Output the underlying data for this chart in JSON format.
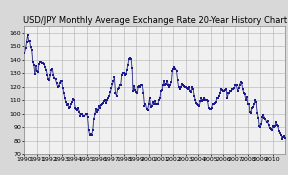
{
  "title": "USD/JPY Monthly Average Exchange Rate 20-Year History Chart",
  "xlim": [
    1990,
    2011
  ],
  "ylim": [
    70,
    165
  ],
  "yticks": [
    70,
    80,
    90,
    100,
    110,
    120,
    130,
    140,
    150,
    160
  ],
  "xtick_labels": [
    "1990",
    "1991",
    "1992",
    "1993",
    "1994",
    "1995",
    "1996",
    "1997",
    "1998",
    "1999",
    "2000",
    "2001",
    "2002",
    "2003",
    "2004",
    "2005",
    "2006",
    "2007",
    "2008",
    "2009",
    "2010"
  ],
  "line_color": "#1a1a8c",
  "marker_color": "#1a1a8c",
  "bg_color": "#d8d8d8",
  "plot_bg": "#f0f0f0",
  "grid_color": "#b0b0b0",
  "title_fontsize": 6.0,
  "tick_fontsize": 4.5,
  "data": [
    [
      1990.0,
      145.0
    ],
    [
      1990.083,
      148.5
    ],
    [
      1990.167,
      153.2
    ],
    [
      1990.25,
      158.5
    ],
    [
      1990.333,
      154.0
    ],
    [
      1990.417,
      153.8
    ],
    [
      1990.5,
      149.2
    ],
    [
      1990.583,
      147.5
    ],
    [
      1990.667,
      138.5
    ],
    [
      1990.75,
      136.3
    ],
    [
      1990.833,
      129.5
    ],
    [
      1990.917,
      135.4
    ],
    [
      1991.0,
      131.5
    ],
    [
      1991.083,
      130.8
    ],
    [
      1991.167,
      137.0
    ],
    [
      1991.25,
      138.5
    ],
    [
      1991.333,
      138.2
    ],
    [
      1991.417,
      137.8
    ],
    [
      1991.5,
      138.0
    ],
    [
      1991.583,
      137.0
    ],
    [
      1991.667,
      134.5
    ],
    [
      1991.75,
      132.8
    ],
    [
      1991.833,
      129.0
    ],
    [
      1991.917,
      125.5
    ],
    [
      1992.0,
      125.0
    ],
    [
      1992.083,
      129.0
    ],
    [
      1992.167,
      132.5
    ],
    [
      1992.25,
      133.0
    ],
    [
      1992.333,
      128.5
    ],
    [
      1992.417,
      126.5
    ],
    [
      1992.5,
      125.5
    ],
    [
      1992.583,
      122.5
    ],
    [
      1992.667,
      120.0
    ],
    [
      1992.75,
      120.5
    ],
    [
      1992.833,
      123.0
    ],
    [
      1992.917,
      124.5
    ],
    [
      1993.0,
      124.5
    ],
    [
      1993.083,
      119.0
    ],
    [
      1993.167,
      115.5
    ],
    [
      1993.25,
      111.5
    ],
    [
      1993.333,
      108.5
    ],
    [
      1993.417,
      106.5
    ],
    [
      1993.5,
      107.5
    ],
    [
      1993.583,
      104.0
    ],
    [
      1993.667,
      105.0
    ],
    [
      1993.75,
      107.5
    ],
    [
      1993.833,
      108.5
    ],
    [
      1993.917,
      111.0
    ],
    [
      1994.0,
      110.5
    ],
    [
      1994.083,
      104.0
    ],
    [
      1994.167,
      103.5
    ],
    [
      1994.25,
      103.0
    ],
    [
      1994.333,
      104.0
    ],
    [
      1994.417,
      101.5
    ],
    [
      1994.5,
      98.5
    ],
    [
      1994.583,
      100.0
    ],
    [
      1994.667,
      99.5
    ],
    [
      1994.75,
      98.5
    ],
    [
      1994.833,
      98.0
    ],
    [
      1994.917,
      99.7
    ],
    [
      1995.0,
      99.7
    ],
    [
      1995.083,
      97.5
    ],
    [
      1995.167,
      88.0
    ],
    [
      1995.25,
      84.0
    ],
    [
      1995.333,
      85.0
    ],
    [
      1995.417,
      84.5
    ],
    [
      1995.5,
      87.5
    ],
    [
      1995.583,
      96.0
    ],
    [
      1995.667,
      99.5
    ],
    [
      1995.75,
      103.5
    ],
    [
      1995.833,
      101.5
    ],
    [
      1995.917,
      103.0
    ],
    [
      1996.0,
      106.0
    ],
    [
      1996.083,
      104.5
    ],
    [
      1996.167,
      106.5
    ],
    [
      1996.25,
      107.0
    ],
    [
      1996.333,
      108.0
    ],
    [
      1996.417,
      109.5
    ],
    [
      1996.5,
      110.5
    ],
    [
      1996.583,
      108.0
    ],
    [
      1996.667,
      110.0
    ],
    [
      1996.75,
      112.0
    ],
    [
      1996.833,
      113.5
    ],
    [
      1996.917,
      116.0
    ],
    [
      1997.0,
      119.0
    ],
    [
      1997.083,
      122.0
    ],
    [
      1997.167,
      124.0
    ],
    [
      1997.25,
      127.0
    ],
    [
      1997.333,
      115.0
    ],
    [
      1997.417,
      113.5
    ],
    [
      1997.5,
      118.0
    ],
    [
      1997.583,
      119.0
    ],
    [
      1997.667,
      121.5
    ],
    [
      1997.75,
      121.0
    ],
    [
      1997.833,
      128.5
    ],
    [
      1997.917,
      130.0
    ],
    [
      1998.0,
      130.5
    ],
    [
      1998.083,
      128.5
    ],
    [
      1998.167,
      129.5
    ],
    [
      1998.25,
      132.5
    ],
    [
      1998.333,
      136.5
    ],
    [
      1998.417,
      140.8
    ],
    [
      1998.5,
      141.5
    ],
    [
      1998.583,
      141.0
    ],
    [
      1998.667,
      134.0
    ],
    [
      1998.75,
      116.5
    ],
    [
      1998.833,
      120.5
    ],
    [
      1998.917,
      117.5
    ],
    [
      1999.0,
      116.0
    ],
    [
      1999.083,
      115.0
    ],
    [
      1999.167,
      120.0
    ],
    [
      1999.25,
      120.5
    ],
    [
      1999.333,
      120.0
    ],
    [
      1999.417,
      121.5
    ],
    [
      1999.5,
      121.0
    ],
    [
      1999.583,
      115.0
    ],
    [
      1999.667,
      106.0
    ],
    [
      1999.75,
      107.5
    ],
    [
      1999.833,
      103.5
    ],
    [
      1999.917,
      102.5
    ],
    [
      2000.0,
      107.0
    ],
    [
      2000.083,
      111.5
    ],
    [
      2000.167,
      105.0
    ],
    [
      2000.25,
      106.0
    ],
    [
      2000.333,
      108.5
    ],
    [
      2000.417,
      107.5
    ],
    [
      2000.5,
      109.5
    ],
    [
      2000.583,
      107.5
    ],
    [
      2000.667,
      107.0
    ],
    [
      2000.75,
      107.5
    ],
    [
      2000.833,
      110.5
    ],
    [
      2000.917,
      112.0
    ],
    [
      2001.0,
      117.0
    ],
    [
      2001.083,
      117.5
    ],
    [
      2001.167,
      121.5
    ],
    [
      2001.25,
      124.5
    ],
    [
      2001.333,
      121.0
    ],
    [
      2001.417,
      122.0
    ],
    [
      2001.5,
      124.5
    ],
    [
      2001.583,
      121.5
    ],
    [
      2001.667,
      119.5
    ],
    [
      2001.75,
      121.5
    ],
    [
      2001.833,
      123.5
    ],
    [
      2001.917,
      132.0
    ],
    [
      2002.0,
      133.5
    ],
    [
      2002.083,
      134.5
    ],
    [
      2002.167,
      133.5
    ],
    [
      2002.25,
      132.0
    ],
    [
      2002.333,
      125.0
    ],
    [
      2002.417,
      119.5
    ],
    [
      2002.5,
      118.5
    ],
    [
      2002.583,
      119.5
    ],
    [
      2002.667,
      122.0
    ],
    [
      2002.75,
      121.5
    ],
    [
      2002.833,
      120.5
    ],
    [
      2002.917,
      119.8
    ],
    [
      2003.0,
      119.5
    ],
    [
      2003.083,
      119.0
    ],
    [
      2003.167,
      118.5
    ],
    [
      2003.25,
      120.0
    ],
    [
      2003.333,
      117.0
    ],
    [
      2003.417,
      116.0
    ],
    [
      2003.5,
      120.0
    ],
    [
      2003.583,
      118.5
    ],
    [
      2003.667,
      113.5
    ],
    [
      2003.75,
      110.5
    ],
    [
      2003.833,
      108.0
    ],
    [
      2003.917,
      107.0
    ],
    [
      2004.0,
      106.5
    ],
    [
      2004.083,
      105.5
    ],
    [
      2004.167,
      109.5
    ],
    [
      2004.25,
      111.5
    ],
    [
      2004.333,
      109.5
    ],
    [
      2004.417,
      110.0
    ],
    [
      2004.5,
      111.5
    ],
    [
      2004.583,
      110.5
    ],
    [
      2004.667,
      110.0
    ],
    [
      2004.75,
      109.5
    ],
    [
      2004.833,
      104.5
    ],
    [
      2004.917,
      103.5
    ],
    [
      2005.0,
      103.5
    ],
    [
      2005.083,
      104.5
    ],
    [
      2005.167,
      107.5
    ],
    [
      2005.25,
      107.0
    ],
    [
      2005.333,
      108.0
    ],
    [
      2005.417,
      108.5
    ],
    [
      2005.5,
      112.0
    ],
    [
      2005.583,
      111.5
    ],
    [
      2005.667,
      113.5
    ],
    [
      2005.75,
      115.5
    ],
    [
      2005.833,
      118.5
    ],
    [
      2005.917,
      117.5
    ],
    [
      2006.0,
      117.0
    ],
    [
      2006.083,
      116.5
    ],
    [
      2006.167,
      117.5
    ],
    [
      2006.25,
      118.0
    ],
    [
      2006.333,
      111.5
    ],
    [
      2006.417,
      115.0
    ],
    [
      2006.5,
      115.5
    ],
    [
      2006.583,
      117.0
    ],
    [
      2006.667,
      116.5
    ],
    [
      2006.75,
      118.5
    ],
    [
      2006.833,
      118.0
    ],
    [
      2006.917,
      119.0
    ],
    [
      2007.0,
      121.5
    ],
    [
      2007.083,
      121.0
    ],
    [
      2007.167,
      117.0
    ],
    [
      2007.25,
      119.0
    ],
    [
      2007.333,
      121.5
    ],
    [
      2007.417,
      123.5
    ],
    [
      2007.5,
      122.5
    ],
    [
      2007.583,
      118.5
    ],
    [
      2007.667,
      115.0
    ],
    [
      2007.75,
      114.5
    ],
    [
      2007.833,
      110.0
    ],
    [
      2007.917,
      112.5
    ],
    [
      2008.0,
      107.5
    ],
    [
      2008.083,
      107.0
    ],
    [
      2008.167,
      101.5
    ],
    [
      2008.25,
      100.5
    ],
    [
      2008.333,
      104.5
    ],
    [
      2008.417,
      105.0
    ],
    [
      2008.5,
      107.0
    ],
    [
      2008.583,
      110.5
    ],
    [
      2008.667,
      108.5
    ],
    [
      2008.75,
      100.5
    ],
    [
      2008.833,
      97.0
    ],
    [
      2008.917,
      90.5
    ],
    [
      2009.0,
      90.0
    ],
    [
      2009.083,
      92.5
    ],
    [
      2009.167,
      97.5
    ],
    [
      2009.25,
      99.0
    ],
    [
      2009.333,
      96.5
    ],
    [
      2009.417,
      96.0
    ],
    [
      2009.5,
      93.5
    ],
    [
      2009.583,
      94.5
    ],
    [
      2009.667,
      91.5
    ],
    [
      2009.75,
      89.5
    ],
    [
      2009.833,
      88.5
    ],
    [
      2009.917,
      87.5
    ],
    [
      2010.0,
      91.0
    ],
    [
      2010.083,
      90.0
    ],
    [
      2010.167,
      90.5
    ],
    [
      2010.25,
      93.5
    ],
    [
      2010.333,
      91.5
    ],
    [
      2010.417,
      90.5
    ],
    [
      2010.5,
      87.0
    ],
    [
      2010.583,
      85.5
    ],
    [
      2010.667,
      84.5
    ],
    [
      2010.75,
      81.5
    ],
    [
      2010.833,
      82.5
    ],
    [
      2010.917,
      83.5
    ],
    [
      2011.0,
      82.0
    ]
  ]
}
